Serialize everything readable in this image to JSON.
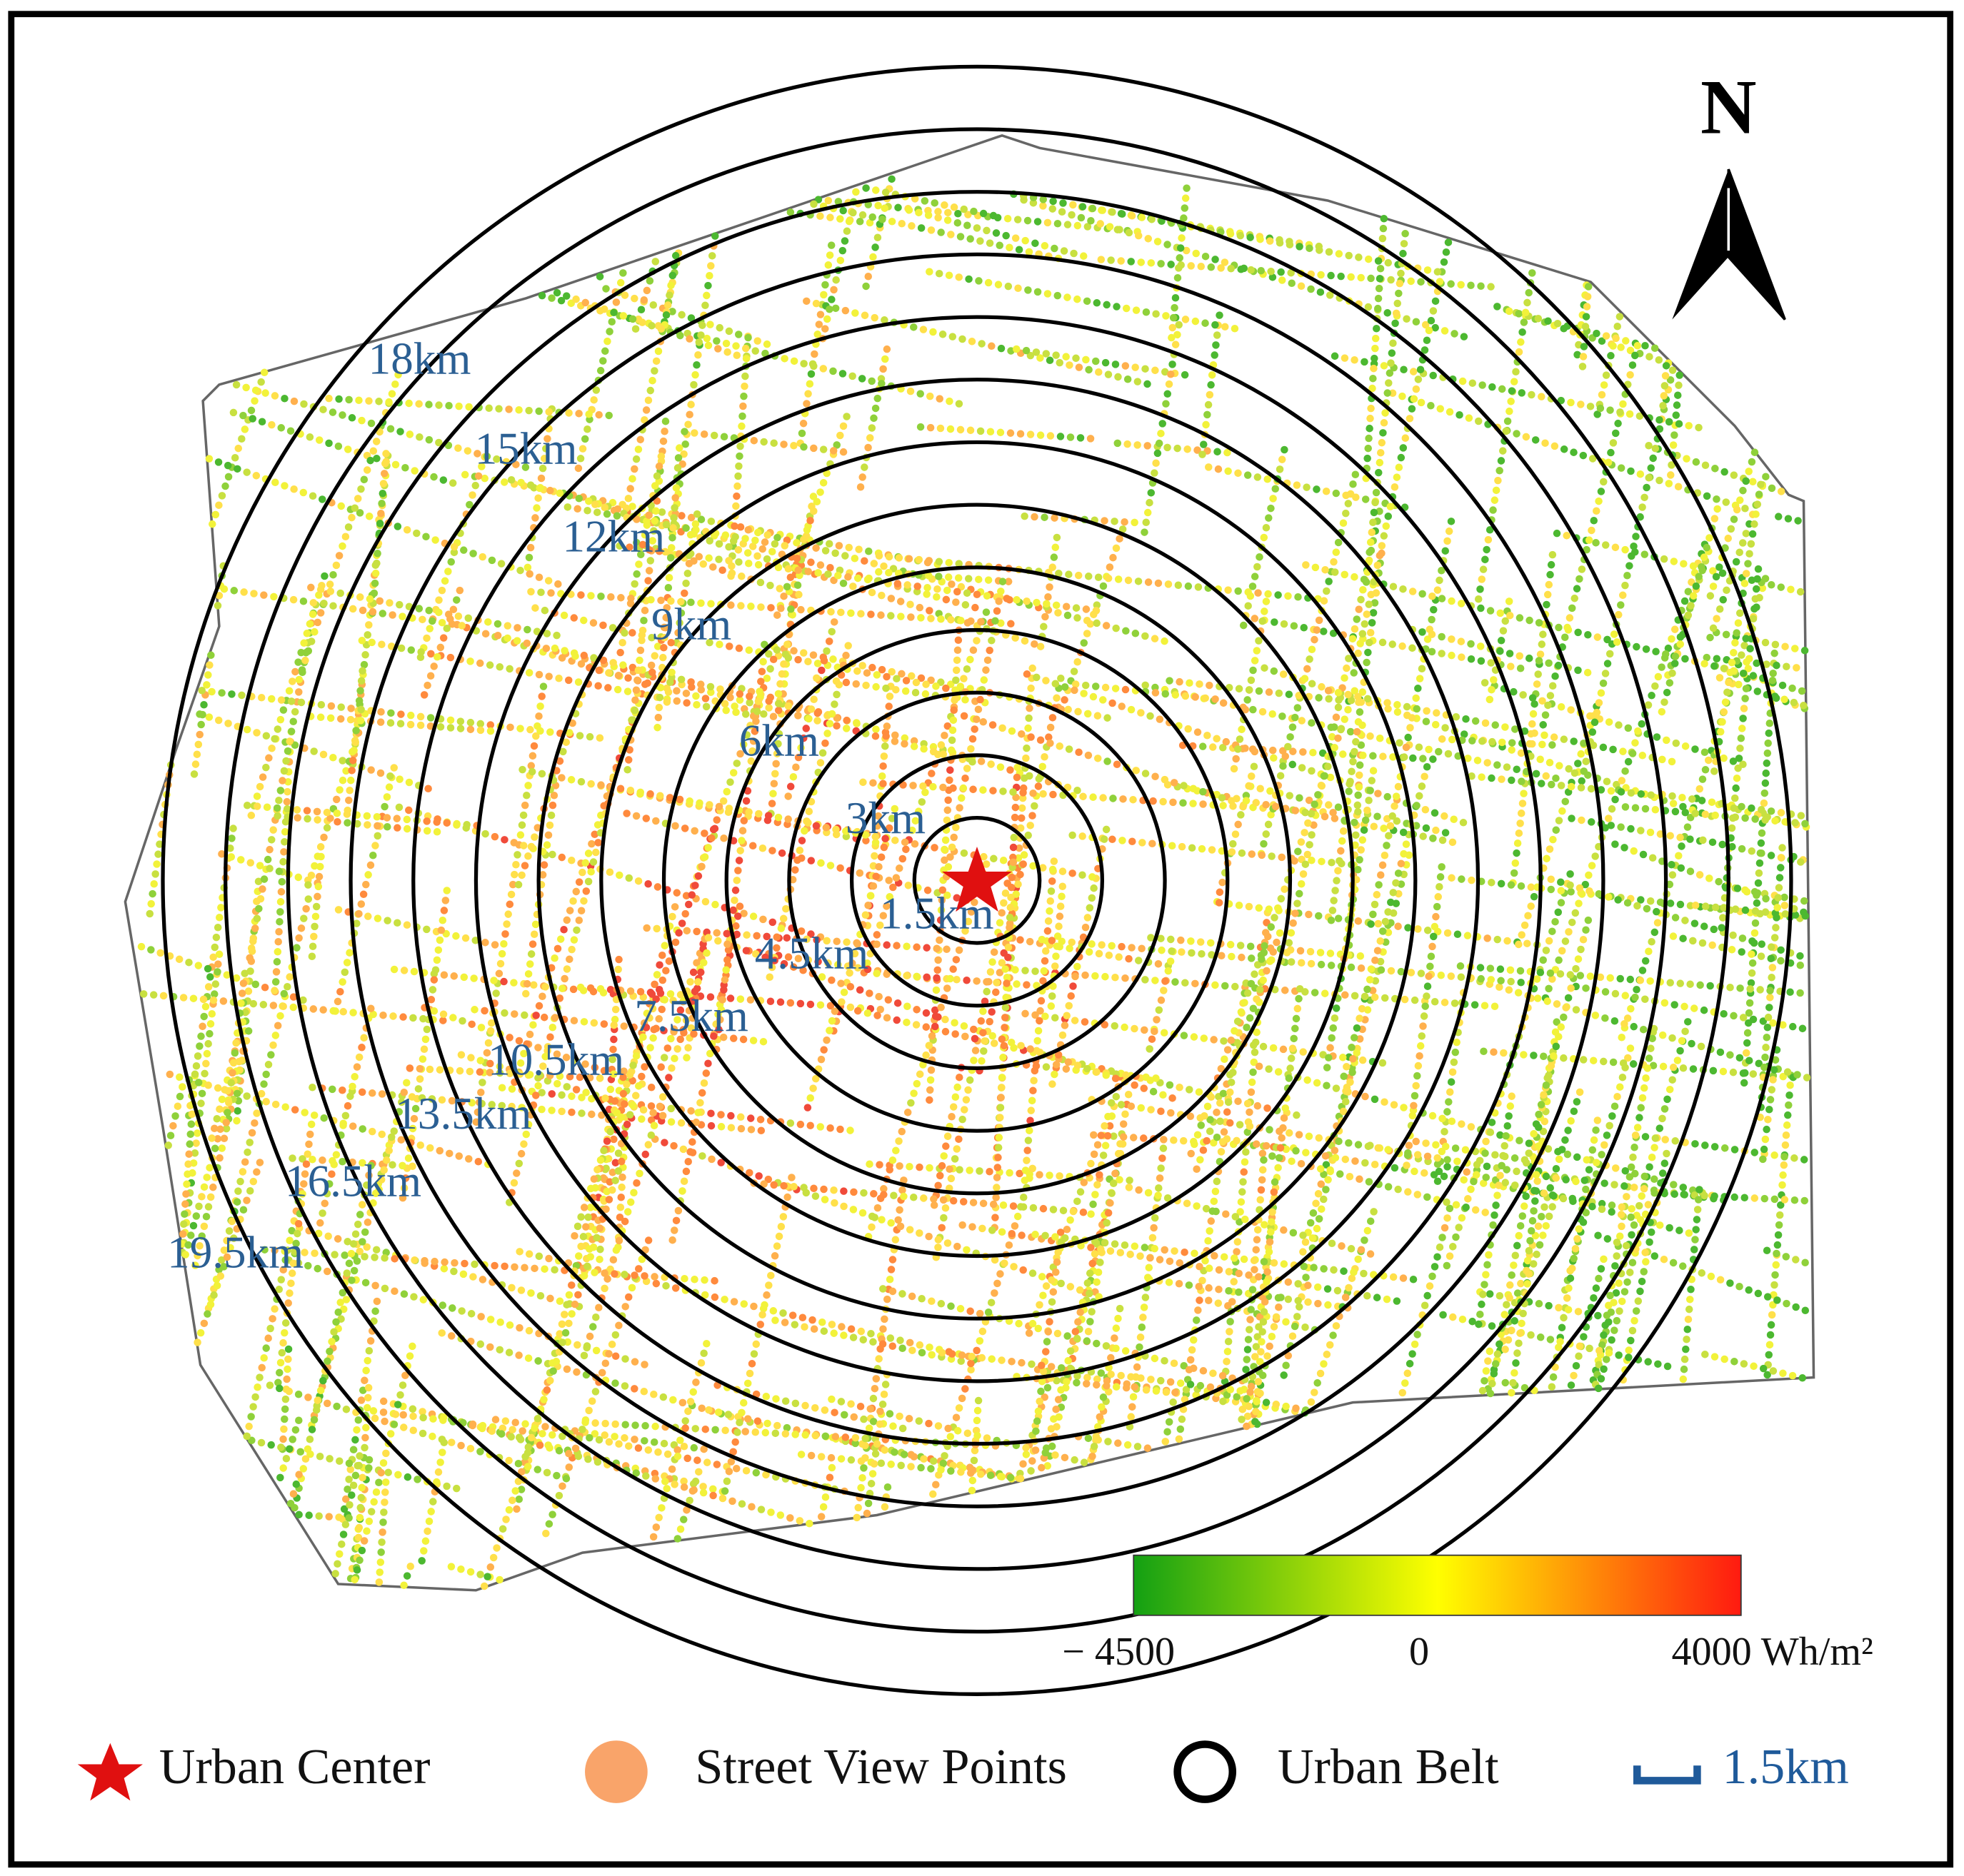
{
  "north": "N",
  "ring_labels": [
    "1.5km",
    "3km",
    "4.5km",
    "6km",
    "7.5km",
    "9km",
    "10.5km",
    "12km",
    "13.5km",
    "15km",
    "16.5km",
    "18km",
    "19.5km"
  ],
  "colorbar": {
    "min_label": "− 4500",
    "mid_label": "0",
    "max_label": "4000 Wh/m²"
  },
  "legend": {
    "center": "Urban Center",
    "points": "Street View Points",
    "belt": "Urban Belt",
    "scale": "1.5km"
  }
}
